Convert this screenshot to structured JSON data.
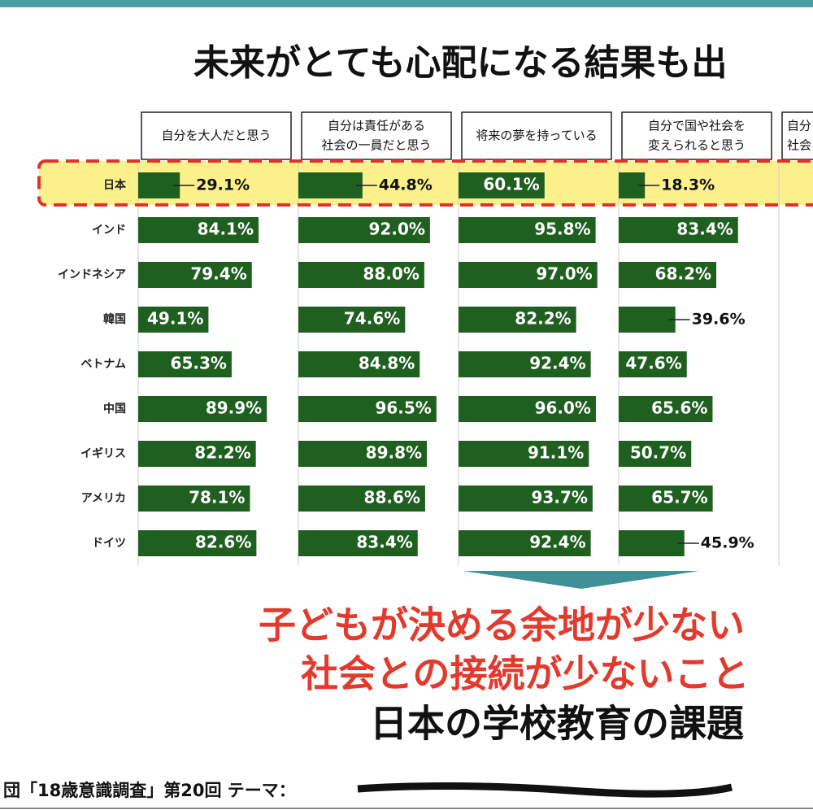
{
  "headline": "未来がとても心配になる結果も出",
  "categories": [
    "日本",
    "インド",
    "インドネシア",
    "韓国",
    "ベトナム",
    "中国",
    "イギリス",
    "アメリカ",
    "ドイツ"
  ],
  "chart_data": [
    {
      "type": "bar",
      "title": [
        "自分を大人だと思う"
      ],
      "color": "#1f5f1f",
      "xlim": [
        0,
        100
      ],
      "values": [
        29.1,
        84.1,
        79.4,
        49.1,
        65.3,
        89.9,
        82.2,
        78.1,
        82.6
      ],
      "value_labels": [
        "29.1%",
        "84.1%",
        "79.4%",
        "49.1%",
        "65.3%",
        "89.9%",
        "82.2%",
        "78.1%",
        "82.6%"
      ]
    },
    {
      "type": "bar",
      "title": [
        "自分は責任がある",
        "社会の一員だと思う"
      ],
      "color": "#1f5f1f",
      "xlim": [
        0,
        100
      ],
      "values": [
        44.8,
        92.0,
        88.0,
        74.6,
        84.8,
        96.5,
        89.8,
        88.6,
        83.4
      ],
      "value_labels": [
        "44.8%",
        "92.0%",
        "88.0%",
        "74.6%",
        "84.8%",
        "96.5%",
        "89.8%",
        "88.6%",
        "83.4%"
      ]
    },
    {
      "type": "bar",
      "title": [
        "将来の夢を持っている"
      ],
      "color": "#1f5f1f",
      "xlim": [
        0,
        100
      ],
      "values": [
        60.1,
        95.8,
        97.0,
        82.2,
        92.4,
        96.0,
        91.1,
        93.7,
        92.4
      ],
      "value_labels": [
        "60.1%",
        "95.8%",
        "97.0%",
        "82.2%",
        "92.4%",
        "96.0%",
        "91.1%",
        "93.7%",
        "92.4%"
      ]
    },
    {
      "type": "bar",
      "title": [
        "自分で国や社会を",
        "変えられると思う"
      ],
      "color": "#1f5f1f",
      "xlim": [
        0,
        100
      ],
      "values": [
        18.3,
        83.4,
        68.2,
        39.6,
        47.6,
        65.6,
        50.7,
        65.7,
        45.9
      ],
      "value_labels": [
        "18.3%",
        "83.4%",
        "68.2%",
        "39.6%",
        "47.6%",
        "65.6%",
        "50.7%",
        "65.7%",
        "45.9%"
      ]
    }
  ],
  "cut_header": [
    "自分",
    "社会"
  ],
  "message": [
    "子どもが決める余地が少ない",
    "社会との接続が少ないこと",
    "日本の学校教育の課題"
  ],
  "footer": "団「18歳意識調査」第20回 テーマ："
}
